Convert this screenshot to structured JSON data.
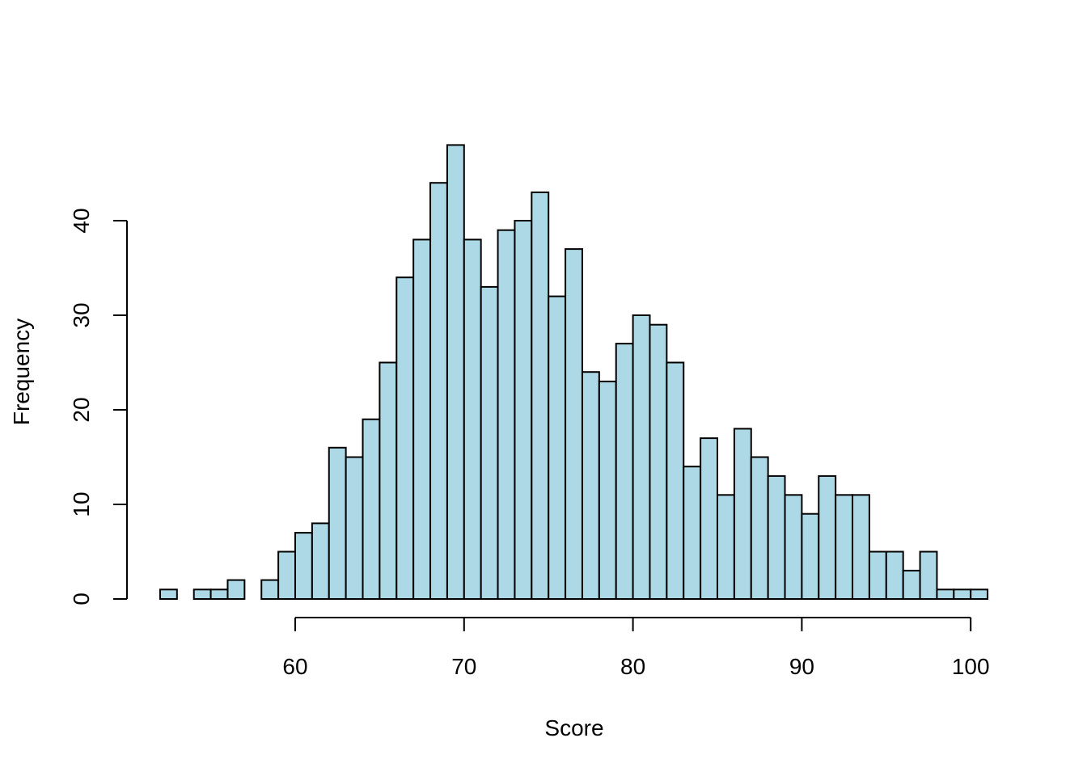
{
  "chart_data": {
    "type": "bar",
    "subtype": "histogram",
    "title": "",
    "xlabel": "Score",
    "ylabel": "Frequency",
    "bar_color": "#ADD8E6",
    "edge_color": "#000000",
    "bin_width": 1,
    "bin_edges_start": 52,
    "values": [
      1,
      0,
      1,
      1,
      2,
      0,
      2,
      5,
      7,
      8,
      16,
      15,
      19,
      25,
      34,
      38,
      44,
      48,
      38,
      33,
      39,
      40,
      43,
      32,
      37,
      24,
      23,
      27,
      30,
      29,
      25,
      14,
      17,
      11,
      18,
      15,
      13,
      11,
      9,
      13,
      11,
      11,
      5,
      5,
      3,
      5,
      1,
      1,
      1
    ],
    "xlim": [
      52,
      101
    ],
    "ylim": [
      0,
      48
    ],
    "x_ticks": [
      "60",
      "70",
      "80",
      "90",
      "100"
    ],
    "y_ticks": [
      "0",
      "10",
      "20",
      "30",
      "40"
    ],
    "grid": false
  }
}
